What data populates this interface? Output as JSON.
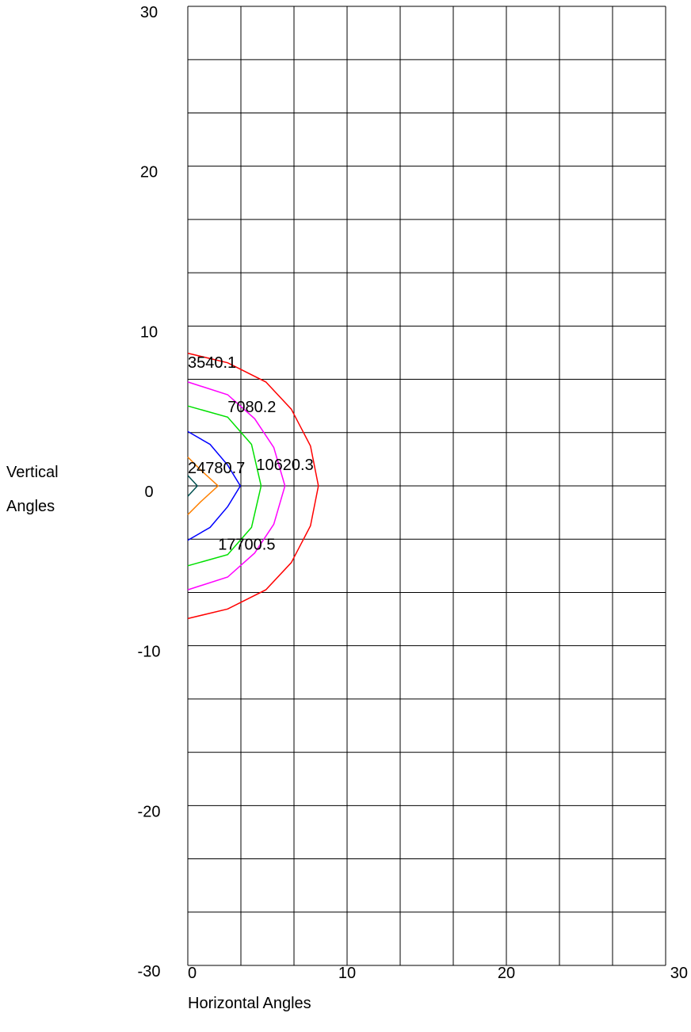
{
  "chart_data": {
    "type": "line",
    "title": "",
    "xlabel": "Horizontal Angles",
    "ylabel_lines": [
      "Vertical",
      "Angles"
    ],
    "xlim": [
      0,
      30
    ],
    "ylim": [
      -30,
      30
    ],
    "x_ticks": [
      "0",
      "10",
      "20",
      "30"
    ],
    "y_ticks": [
      "30",
      "20",
      "10",
      "0",
      "-10",
      "-20",
      "-30"
    ],
    "grid": true,
    "grid_step_x": 3.333,
    "grid_step_y": 3.333,
    "series": [
      {
        "color": "#ff0000",
        "label": "3540.1",
        "points": [
          [
            0,
            8.3
          ],
          [
            2.5,
            7.7
          ],
          [
            4.9,
            6.5
          ],
          [
            6.5,
            4.8
          ],
          [
            7.7,
            2.5
          ],
          [
            8.2,
            0
          ],
          [
            7.7,
            -2.5
          ],
          [
            6.5,
            -4.8
          ],
          [
            4.9,
            -6.5
          ],
          [
            2.5,
            -7.7
          ],
          [
            0,
            -8.3
          ]
        ]
      },
      {
        "color": "#ff00ff",
        "label": "7080.2",
        "points": [
          [
            0,
            6.5
          ],
          [
            2.5,
            5.7
          ],
          [
            4.2,
            4.2
          ],
          [
            5.4,
            2.4
          ],
          [
            6.1,
            0
          ],
          [
            5.4,
            -2.4
          ],
          [
            4.2,
            -4.2
          ],
          [
            2.5,
            -5.7
          ],
          [
            0,
            -6.5
          ]
        ]
      },
      {
        "color": "#00e000",
        "label": "10620.3",
        "points": [
          [
            0,
            5.0
          ],
          [
            2.5,
            4.3
          ],
          [
            4.0,
            2.6
          ],
          [
            4.6,
            0
          ],
          [
            4.0,
            -2.6
          ],
          [
            2.5,
            -4.3
          ],
          [
            0,
            -5.0
          ]
        ]
      },
      {
        "color": "#0000ff",
        "label": "17700.5",
        "points": [
          [
            0,
            3.4
          ],
          [
            1.4,
            2.6
          ],
          [
            2.5,
            1.3
          ],
          [
            3.3,
            0
          ],
          [
            2.5,
            -1.3
          ],
          [
            1.4,
            -2.6
          ],
          [
            0,
            -3.4
          ]
        ]
      },
      {
        "color": "#ff8000",
        "label": "24780.7",
        "points": [
          [
            0,
            1.8
          ],
          [
            0.8,
            1.0
          ],
          [
            1.9,
            0
          ],
          [
            0.8,
            -1.0
          ],
          [
            0,
            -1.8
          ]
        ]
      },
      {
        "color": "#005050",
        "label": "",
        "points": [
          [
            0,
            0.65
          ],
          [
            0.6,
            0
          ],
          [
            0,
            -0.65
          ]
        ]
      }
    ],
    "contour_labels": [
      {
        "text": "3540.1",
        "x": 0.0,
        "y": 7.4
      },
      {
        "text": "7080.2",
        "x": 2.5,
        "y": 4.6
      },
      {
        "text": "24780.7",
        "x": 0.0,
        "y": 0.8
      },
      {
        "text": "10620.3",
        "x": 4.3,
        "y": 1.0
      },
      {
        "text": "17700.5",
        "x": 1.9,
        "y": -4.0
      }
    ]
  }
}
